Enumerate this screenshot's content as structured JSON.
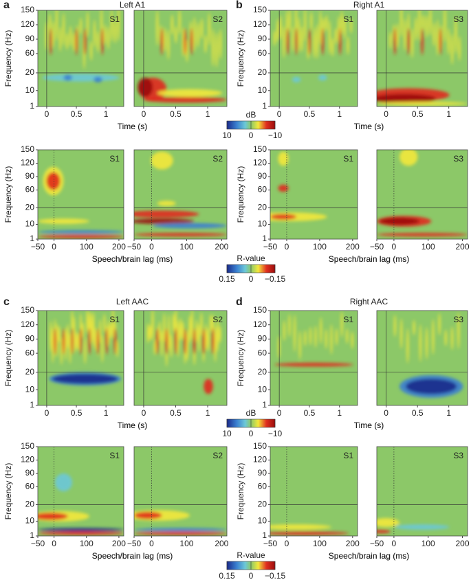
{
  "panels": [
    {
      "letter": "a",
      "title": "Left A1",
      "rows": [
        {
          "tags": [
            "S1",
            "S2"
          ],
          "x_label": "Time (s)",
          "xlim": [
            -0.15,
            1.3
          ],
          "xticks": [
            0,
            0.5,
            1
          ],
          "y_label": "Frequency (Hz)",
          "ylim": [
            1,
            150
          ],
          "yticks": [
            1,
            10,
            20,
            60,
            90,
            120,
            150
          ]
        },
        {
          "tags": [
            "S1",
            "S2"
          ],
          "x_label": "Speech/brain lag (ms)",
          "xlim": [
            -50,
            215
          ],
          "xticks": [
            {
              "value": -50,
              "label": "−50"
            },
            0,
            100,
            200
          ],
          "y_label": "Frequency (Hz)",
          "ylim": [
            1,
            150
          ],
          "yticks": [
            1,
            10,
            20,
            60,
            90,
            120,
            150
          ]
        }
      ]
    },
    {
      "letter": "b",
      "title": "Right A1",
      "rows": [
        {
          "tags": [
            "S1",
            "S3"
          ],
          "x_label": "Time (s)",
          "xlim": [
            -0.15,
            1.3
          ],
          "xticks": [
            0,
            0.5,
            1
          ],
          "y_label": "Frequency (Hz)",
          "ylim": [
            1,
            150
          ],
          "yticks": [
            1,
            10,
            20,
            60,
            90,
            120,
            150
          ]
        },
        {
          "tags": [
            "S1",
            "S3"
          ],
          "x_label": "Speech/brain lag (ms)",
          "xlim": [
            -50,
            215
          ],
          "xticks": [
            {
              "value": -50,
              "label": "−50"
            },
            0,
            100,
            200
          ],
          "y_label": "Frequency (Hz)",
          "ylim": [
            1,
            150
          ],
          "yticks": [
            1,
            10,
            20,
            60,
            90,
            120,
            150
          ]
        }
      ]
    },
    {
      "letter": "c",
      "title": "Left AAC",
      "rows": [
        {
          "tags": [
            "S1",
            "S2"
          ],
          "x_label": "Time (s)",
          "xlim": [
            -0.15,
            1.3
          ],
          "xticks": [
            0,
            0.5,
            1
          ],
          "y_label": "Frequency (Hz)",
          "ylim": [
            1,
            150
          ],
          "yticks": [
            1,
            10,
            20,
            60,
            90,
            120,
            150
          ]
        },
        {
          "tags": [
            "S1",
            "S2"
          ],
          "x_label": "Speech/brain lag (ms)",
          "xlim": [
            -50,
            215
          ],
          "xticks": [
            {
              "value": -50,
              "label": "−50"
            },
            0,
            100,
            200
          ],
          "y_label": "Frequency (Hz)",
          "ylim": [
            1,
            150
          ],
          "yticks": [
            1,
            10,
            20,
            60,
            90,
            120,
            150
          ]
        }
      ]
    },
    {
      "letter": "d",
      "title": "Right AAC",
      "rows": [
        {
          "tags": [
            "S1",
            "S3"
          ],
          "x_label": "Time (s)",
          "xlim": [
            -0.15,
            1.3
          ],
          "xticks": [
            0,
            0.5,
            1
          ],
          "y_label": "Frequency (Hz)",
          "ylim": [
            1,
            150
          ],
          "yticks": [
            1,
            10,
            20,
            60,
            90,
            120,
            150
          ]
        },
        {
          "tags": [
            "S1",
            "S3"
          ],
          "x_label": "Speech/brain lag (ms)",
          "xlim": [
            -50,
            215
          ],
          "xticks": [
            {
              "value": -50,
              "label": "−50"
            },
            0,
            100,
            200
          ],
          "y_label": "Frequency (Hz)",
          "ylim": [
            1,
            150
          ],
          "yticks": [
            1,
            10,
            20,
            60,
            90,
            120,
            150
          ]
        }
      ]
    }
  ],
  "colorbars": [
    {
      "label": "dB",
      "ticks": [
        10,
        0,
        {
          "value": -10,
          "label": "−10"
        }
      ]
    },
    {
      "label": "R-value",
      "ticks": [
        0.15,
        0,
        {
          "value": -0.15,
          "label": "−0.15"
        }
      ]
    },
    {
      "label": "dB",
      "ticks": [
        10,
        0,
        {
          "value": -10,
          "label": "−10"
        }
      ]
    },
    {
      "label": "R-value",
      "ticks": [
        0.15,
        0,
        {
          "value": -0.15,
          "label": "−0.15"
        }
      ]
    }
  ]
}
